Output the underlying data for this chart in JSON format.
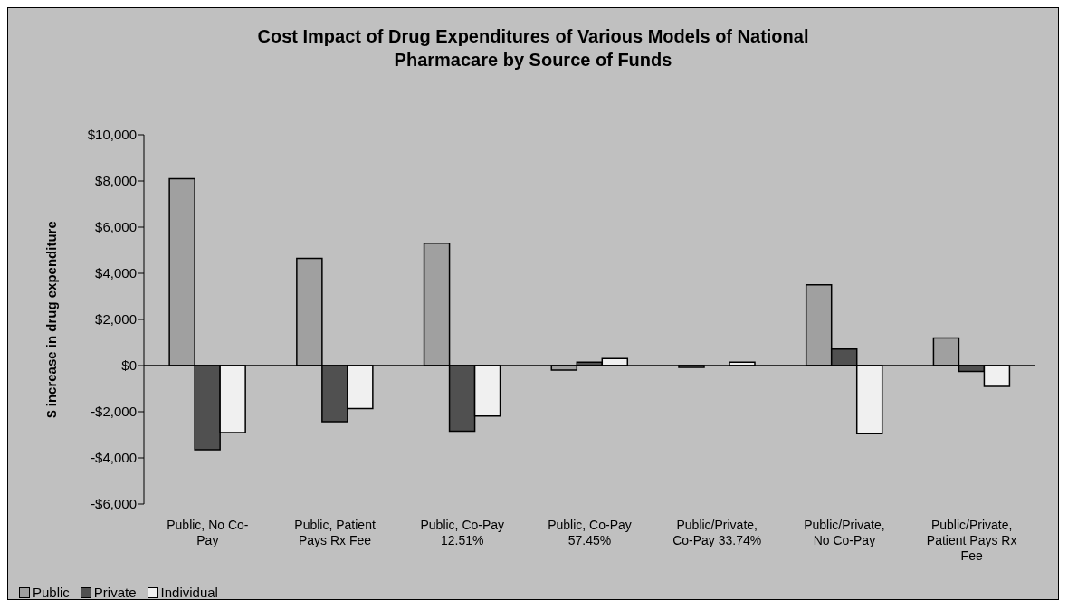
{
  "chart_data": {
    "type": "bar",
    "title": "Cost Impact of Drug Expenditures of Various Models of National Pharmacare by Source of Funds",
    "ylabel": "$ increase in drug expenditure",
    "categories": [
      "Public, No Co-Pay",
      "Public, Patient Pays Rx Fee",
      "Public, Co-Pay 12.51%",
      "Public, Co-Pay 57.45%",
      "Public/Private, Co-Pay 33.74%",
      "Public/Private, No Co-Pay",
      "Public/Private, Patient Pays Rx Fee"
    ],
    "series": [
      {
        "name": "Public",
        "color": "#a0a0a0",
        "values": [
          8100,
          4650,
          5300,
          -200,
          -80,
          3500,
          1200
        ]
      },
      {
        "name": "Private",
        "color": "#505050",
        "values": [
          -3650,
          -2430,
          -2840,
          150,
          null,
          720,
          -250
        ]
      },
      {
        "name": "Individual",
        "color": "#f0f0f0",
        "values": [
          -2900,
          -1860,
          -2190,
          300,
          150,
          -2950,
          -900
        ]
      }
    ],
    "ylim": [
      -6000,
      10000
    ],
    "yticks": [
      {
        "value": -6000,
        "label": "-$6,000"
      },
      {
        "value": -4000,
        "label": "-$4,000"
      },
      {
        "value": -2000,
        "label": "-$2,000"
      },
      {
        "value": 0,
        "label": "$0"
      },
      {
        "value": 2000,
        "label": "$2,000"
      },
      {
        "value": 4000,
        "label": "$4,000"
      },
      {
        "value": 6000,
        "label": "$6,000"
      },
      {
        "value": 8000,
        "label": "$8,000"
      },
      {
        "value": 10000,
        "label": "$10,000"
      }
    ],
    "legend": "bottom left"
  }
}
